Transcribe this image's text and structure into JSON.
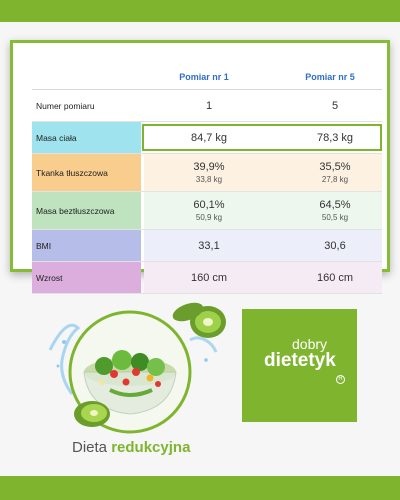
{
  "table": {
    "headers": [
      "Pomiar nr 1",
      "Pomiar nr 5"
    ],
    "rows": [
      {
        "label": "Numer pomiaru",
        "v1": "1",
        "v2": "5",
        "s1": "",
        "s2": "",
        "color": "",
        "bg": ""
      },
      {
        "label": "Masa ciała",
        "v1": "84,7 kg",
        "v2": "78,3 kg",
        "s1": "",
        "s2": "",
        "color": "#9fe3ee",
        "bg": "#e7f8fb"
      },
      {
        "label": "Tkanka tłuszczowa",
        "v1": "39,9%",
        "v2": "35,5%",
        "s1": "33,8 kg",
        "s2": "27,8 kg",
        "color": "#f9cd8e",
        "bg": "#fdf1e2"
      },
      {
        "label": "Masa beztłuszczowa",
        "v1": "60,1%",
        "v2": "64,5%",
        "s1": "50,9 kg",
        "s2": "50,5 kg",
        "color": "#bfe3bf",
        "bg": "#eef7ee"
      },
      {
        "label": "BMI",
        "v1": "33,1",
        "v2": "30,6",
        "s1": "",
        "s2": "",
        "color": "#b7bde9",
        "bg": "#eceffa"
      },
      {
        "label": "Wzrost",
        "v1": "160 cm",
        "v2": "160 cm",
        "s1": "",
        "s2": "",
        "color": "#dcaede",
        "bg": "#f5ebf5"
      }
    ]
  },
  "logo": {
    "line1": "dobry",
    "line2": "dietetyk",
    "reg": "R"
  },
  "caption": {
    "part1": "Dieta",
    "part2": "redukcyjna"
  },
  "colors": {
    "accent": "#7fb52e",
    "header": "#2f6fc7"
  }
}
